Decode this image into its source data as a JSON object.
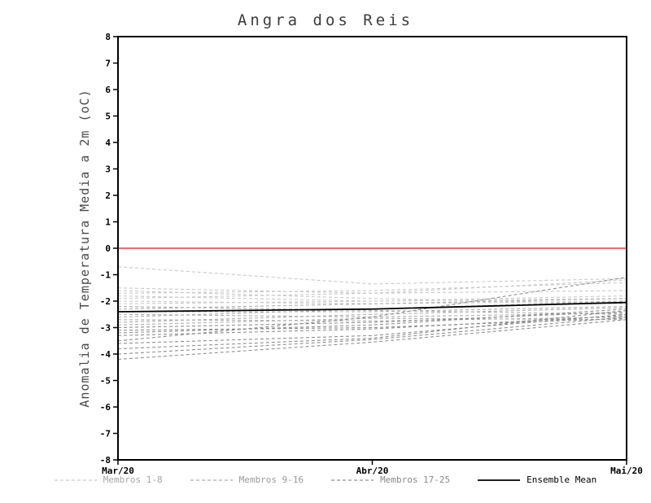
{
  "chart": {
    "title": "Angra dos Reis",
    "ylabel": "Anomalia de Temperatura Media a 2m (oC)"
  },
  "legend": {
    "items": [
      {
        "label": "Membros 1-8",
        "color": "#c9c9c9",
        "label_color": "#a6a6a6",
        "dashed": true
      },
      {
        "label": "Membros 9-16",
        "color": "#aeaeae",
        "label_color": "#9a9a9a",
        "dashed": true
      },
      {
        "label": "Membros 17-25",
        "color": "#8f8f8f",
        "label_color": "#8a8a8a",
        "dashed": true
      },
      {
        "label": "Ensemble Mean",
        "color": "#000000",
        "label_color": "#000000",
        "dashed": false
      }
    ]
  },
  "chart_data": {
    "type": "line",
    "title": "Angra dos Reis",
    "xlabel": "",
    "ylabel": "Anomalia de Temperatura Media a 2m (oC)",
    "x": [
      "Mar/20",
      "Abr/20",
      "Mai/20"
    ],
    "ylim": [
      -8,
      8
    ],
    "ytick_step": 1,
    "grid": false,
    "legend_position": "bottom",
    "zero_line_color": "#f53b3b",
    "groups": [
      {
        "name": "Membros 1-8",
        "color": "#c9c9c9",
        "dashed": true,
        "series": [
          [
            -0.7,
            -1.35,
            -1.15
          ],
          [
            -1.5,
            -1.7,
            -1.6
          ],
          [
            -1.6,
            -1.9,
            -2.1
          ],
          [
            -1.7,
            -1.6,
            -1.3
          ],
          [
            -1.8,
            -2.0,
            -1.9
          ],
          [
            -1.9,
            -1.7,
            -1.2
          ],
          [
            -2.0,
            -2.1,
            -2.0
          ],
          [
            -2.1,
            -2.0,
            -1.8
          ]
        ]
      },
      {
        "name": "Membros 9-16",
        "color": "#aeaeae",
        "dashed": true,
        "series": [
          [
            -2.2,
            -2.35,
            -2.5
          ],
          [
            -2.3,
            -2.1,
            -1.9
          ],
          [
            -2.4,
            -2.4,
            -2.2
          ],
          [
            -2.5,
            -2.6,
            -2.45
          ],
          [
            -2.6,
            -2.3,
            -2.0
          ],
          [
            -2.7,
            -2.75,
            -2.6
          ],
          [
            -2.8,
            -2.5,
            -2.25
          ],
          [
            -2.9,
            -2.65,
            -2.7
          ]
        ]
      },
      {
        "name": "Membros 17-25",
        "color": "#8f8f8f",
        "dashed": true,
        "series": [
          [
            -3.0,
            -2.8,
            -2.4
          ],
          [
            -3.1,
            -3.0,
            -2.65
          ],
          [
            -3.2,
            -2.9,
            -2.3
          ],
          [
            -3.3,
            -3.05,
            -2.55
          ],
          [
            -3.5,
            -2.6,
            -1.1
          ],
          [
            -3.6,
            -3.3,
            -2.5
          ],
          [
            -3.8,
            -3.4,
            -2.35
          ],
          [
            -4.0,
            -3.45,
            -2.6
          ],
          [
            -4.2,
            -3.55,
            -2.7
          ]
        ]
      },
      {
        "name": "Ensemble Mean",
        "color": "#000000",
        "dashed": false,
        "series": [
          [
            -2.4,
            -2.3,
            -2.05
          ]
        ]
      }
    ]
  }
}
